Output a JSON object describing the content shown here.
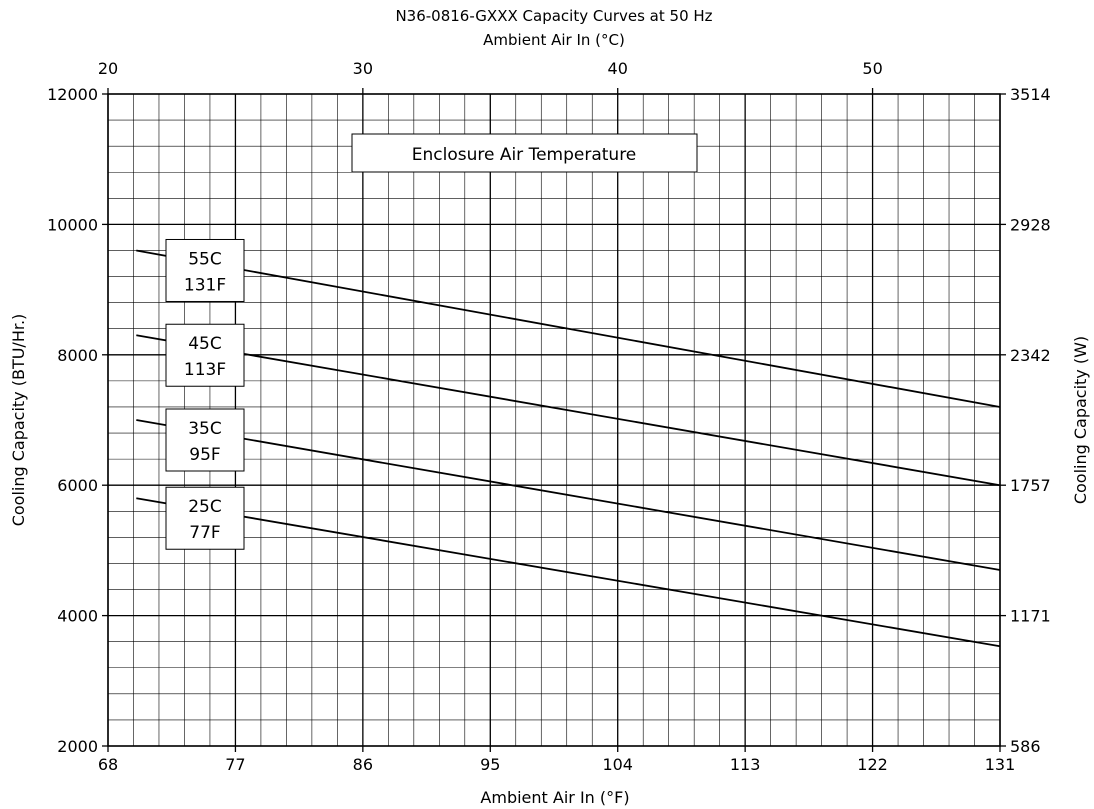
{
  "chart_data": {
    "type": "line",
    "title": "N36-0816-GXXX Capacity Curves at 50 Hz",
    "x_top_label": "Ambient Air In (°C)",
    "xlabel": "Ambient Air In (°F)",
    "ylabel": "Cooling Capacity (BTU/Hr.)",
    "y2label": "Cooling Capacity (W)",
    "legend_title": "Enclosure Air Temperature",
    "xlim": [
      68,
      131
    ],
    "ylim": [
      2000,
      12000
    ],
    "x_ticks": [
      "68",
      "77",
      "86",
      "95",
      "104",
      "113",
      "122",
      "131"
    ],
    "x_top_ticks": [
      "20",
      "30",
      "40",
      "50"
    ],
    "y_ticks": [
      "2000",
      "4000",
      "6000",
      "8000",
      "10000",
      "12000"
    ],
    "y2_ticks": [
      "586",
      "1171",
      "1757",
      "2342",
      "2928",
      "3514"
    ],
    "grid": true,
    "series": [
      {
        "name": "55C\n131F",
        "line1": "55C",
        "line2": "131F",
        "x": [
          70,
          131
        ],
        "y": [
          9600,
          7200
        ]
      },
      {
        "name": "45C\n113F",
        "line1": "45C",
        "line2": "113F",
        "x": [
          70,
          131
        ],
        "y": [
          8300,
          6000
        ]
      },
      {
        "name": "35C\n95F",
        "line1": "35C",
        "line2": "95F",
        "x": [
          70,
          131
        ],
        "y": [
          7000,
          4700
        ]
      },
      {
        "name": "25C\n77F",
        "line1": "25C",
        "line2": "77F",
        "x": [
          70,
          131
        ],
        "y": [
          5800,
          3530
        ]
      }
    ]
  }
}
